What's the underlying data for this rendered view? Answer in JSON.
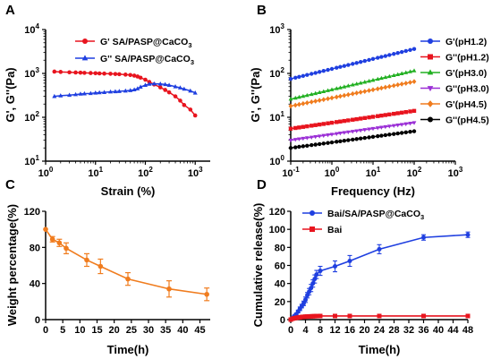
{
  "chart_data": [
    {
      "id": "A",
      "panel_label": "A",
      "type": "line",
      "xscale": "log",
      "yscale": "log",
      "xlim": [
        1,
        2000
      ],
      "ylim": [
        10,
        10000
      ],
      "xlabel": "Strain (%)",
      "ylabel": "G', G''(Pa)",
      "xticks": [
        {
          "value": 1,
          "base": "10",
          "exp": "0"
        },
        {
          "value": 10,
          "base": "10",
          "exp": "1"
        },
        {
          "value": 100,
          "base": "10",
          "exp": "2"
        },
        {
          "value": 1000,
          "base": "10",
          "exp": "3"
        }
      ],
      "yticks": [
        {
          "value": 10,
          "base": "10",
          "exp": "1"
        },
        {
          "value": 100,
          "base": "10",
          "exp": "2"
        },
        {
          "value": 1000,
          "base": "10",
          "exp": "3"
        },
        {
          "value": 10000,
          "base": "10",
          "exp": "4"
        }
      ],
      "legend_position": "top-left",
      "series": [
        {
          "name": "G' SA/PASP@CaCO",
          "name_sub": "3",
          "color": "#e8141e",
          "marker": "circle",
          "x": [
            1.5,
            2,
            3,
            4,
            5,
            6,
            8,
            10,
            12,
            15,
            20,
            25,
            30,
            40,
            50,
            60,
            70,
            80,
            100,
            120,
            150,
            200,
            250,
            300,
            400,
            500,
            600,
            800,
            1000
          ],
          "y": [
            1100,
            1080,
            1060,
            1050,
            1040,
            1030,
            1020,
            1010,
            1000,
            990,
            980,
            970,
            960,
            940,
            920,
            890,
            850,
            800,
            720,
            640,
            560,
            480,
            420,
            370,
            300,
            240,
            190,
            150,
            110
          ]
        },
        {
          "name": "G'' SA/PASP@CaCO",
          "name_sub": "3",
          "color": "#1f3fe0",
          "marker": "triangle",
          "x": [
            1.5,
            2,
            3,
            4,
            5,
            6,
            8,
            10,
            12,
            15,
            20,
            25,
            30,
            40,
            50,
            60,
            70,
            80,
            100,
            120,
            150,
            200,
            250,
            300,
            400,
            500,
            600,
            800,
            1000
          ],
          "y": [
            300,
            310,
            320,
            330,
            340,
            345,
            350,
            360,
            365,
            370,
            380,
            385,
            390,
            400,
            410,
            425,
            450,
            490,
            540,
            570,
            580,
            575,
            560,
            540,
            500,
            470,
            440,
            400,
            360
          ]
        }
      ]
    },
    {
      "id": "B",
      "panel_label": "B",
      "type": "line",
      "xscale": "log",
      "yscale": "log",
      "xlim": [
        0.1,
        1000
      ],
      "ylim": [
        1,
        1000
      ],
      "xlabel": "Frequency (Hz)",
      "ylabel": "G', G''(Pa)",
      "xticks": [
        {
          "value": 0.1,
          "base": "10",
          "exp": "-1"
        },
        {
          "value": 1,
          "base": "10",
          "exp": "0"
        },
        {
          "value": 10,
          "base": "10",
          "exp": "1"
        },
        {
          "value": 100,
          "base": "10",
          "exp": "2"
        },
        {
          "value": 1000,
          "base": "10",
          "exp": "3"
        }
      ],
      "yticks": [
        {
          "value": 1,
          "base": "10",
          "exp": "0"
        },
        {
          "value": 10,
          "base": "10",
          "exp": "1"
        },
        {
          "value": 100,
          "base": "10",
          "exp": "2"
        },
        {
          "value": 1000,
          "base": "10",
          "exp": "3"
        }
      ],
      "legend_position": "right",
      "series": [
        {
          "name": "G'(pH1.2)",
          "color": "#1f3fe0",
          "marker": "circle",
          "start": 75,
          "end": 360
        },
        {
          "name": "G''(pH1.2)",
          "color": "#e8141e",
          "marker": "square",
          "start": 5.5,
          "end": 14
        },
        {
          "name": "G'(pH3.0)",
          "color": "#22b022",
          "marker": "triangle",
          "start": 26,
          "end": 115
        },
        {
          "name": "G''(pH3.0)",
          "color": "#9b2fd6",
          "marker": "triangle-down",
          "start": 3.0,
          "end": 7.5
        },
        {
          "name": "G'(pH4.5)",
          "color": "#f07c1e",
          "marker": "diamond",
          "start": 18,
          "end": 65
        },
        {
          "name": "G''(pH4.5)",
          "color": "#000000",
          "marker": "circle",
          "start": 2.0,
          "end": 4.8
        }
      ],
      "x_points": [
        0.1,
        0.13,
        0.16,
        0.2,
        0.25,
        0.32,
        0.4,
        0.5,
        0.63,
        0.8,
        1,
        1.3,
        1.6,
        2,
        2.5,
        3.2,
        4,
        5,
        6.3,
        8,
        10,
        13,
        16,
        20,
        25,
        32,
        40,
        50,
        63,
        80,
        100
      ]
    },
    {
      "id": "C",
      "panel_label": "C",
      "type": "line",
      "xlabel": "Time(h)",
      "ylabel": "Weight percentage(%)",
      "xlim": [
        0,
        48
      ],
      "ylim": [
        0,
        120
      ],
      "xticks": [
        0,
        5,
        10,
        15,
        20,
        25,
        30,
        35,
        40,
        45
      ],
      "yticks": [
        0,
        40,
        80,
        120
      ],
      "series": [
        {
          "name": "",
          "color": "#f07c1e",
          "marker": "circle",
          "x": [
            0,
            2,
            4,
            6,
            12,
            16,
            24,
            36,
            47
          ],
          "y": [
            100,
            89,
            85,
            79,
            66,
            59,
            45,
            34,
            28
          ],
          "err": [
            0,
            3,
            4,
            6,
            7,
            8,
            7,
            9,
            7
          ]
        }
      ]
    },
    {
      "id": "D",
      "panel_label": "D",
      "type": "line",
      "xlabel": "Time(h)",
      "ylabel": "Cumulative release(%)",
      "xlim": [
        0,
        48
      ],
      "ylim": [
        0,
        120
      ],
      "xticks": [
        0,
        4,
        8,
        12,
        16,
        20,
        24,
        28,
        32,
        36,
        40,
        44,
        48
      ],
      "yticks": [
        0,
        20,
        40,
        60,
        80,
        100,
        120
      ],
      "legend_position": "top-left",
      "series": [
        {
          "name": "Bai/SA/PASP@CaCO",
          "name_sub": "3",
          "color": "#1f3fe0",
          "marker": "circle",
          "x": [
            0,
            0.5,
            1,
            1.5,
            2,
            2.5,
            3,
            3.5,
            4,
            4.5,
            5,
            5.5,
            6,
            6.5,
            7,
            8,
            12,
            16,
            24,
            36,
            48
          ],
          "y": [
            0,
            2,
            4,
            6,
            9,
            12,
            15,
            18,
            22,
            27,
            31,
            35,
            40,
            45,
            50,
            54,
            59,
            65,
            78,
            91,
            94
          ],
          "err": [
            0,
            1,
            1,
            1,
            1.5,
            2,
            2,
            2.5,
            3,
            3,
            3.5,
            4,
            4,
            4.5,
            4.5,
            5,
            6,
            6,
            5,
            3,
            3
          ]
        },
        {
          "name": "Bai",
          "color": "#e8141e",
          "marker": "square",
          "x": [
            0,
            0.5,
            1,
            1.5,
            2,
            2.5,
            3,
            3.5,
            4,
            4.5,
            5,
            5.5,
            6,
            6.5,
            7,
            8,
            12,
            16,
            24,
            36,
            48
          ],
          "y": [
            0,
            1,
            1.5,
            2,
            2.3,
            2.6,
            2.9,
            3.1,
            3.3,
            3.4,
            3.5,
            3.6,
            3.7,
            3.8,
            3.9,
            4,
            4,
            4,
            4,
            4,
            4
          ]
        }
      ]
    }
  ]
}
